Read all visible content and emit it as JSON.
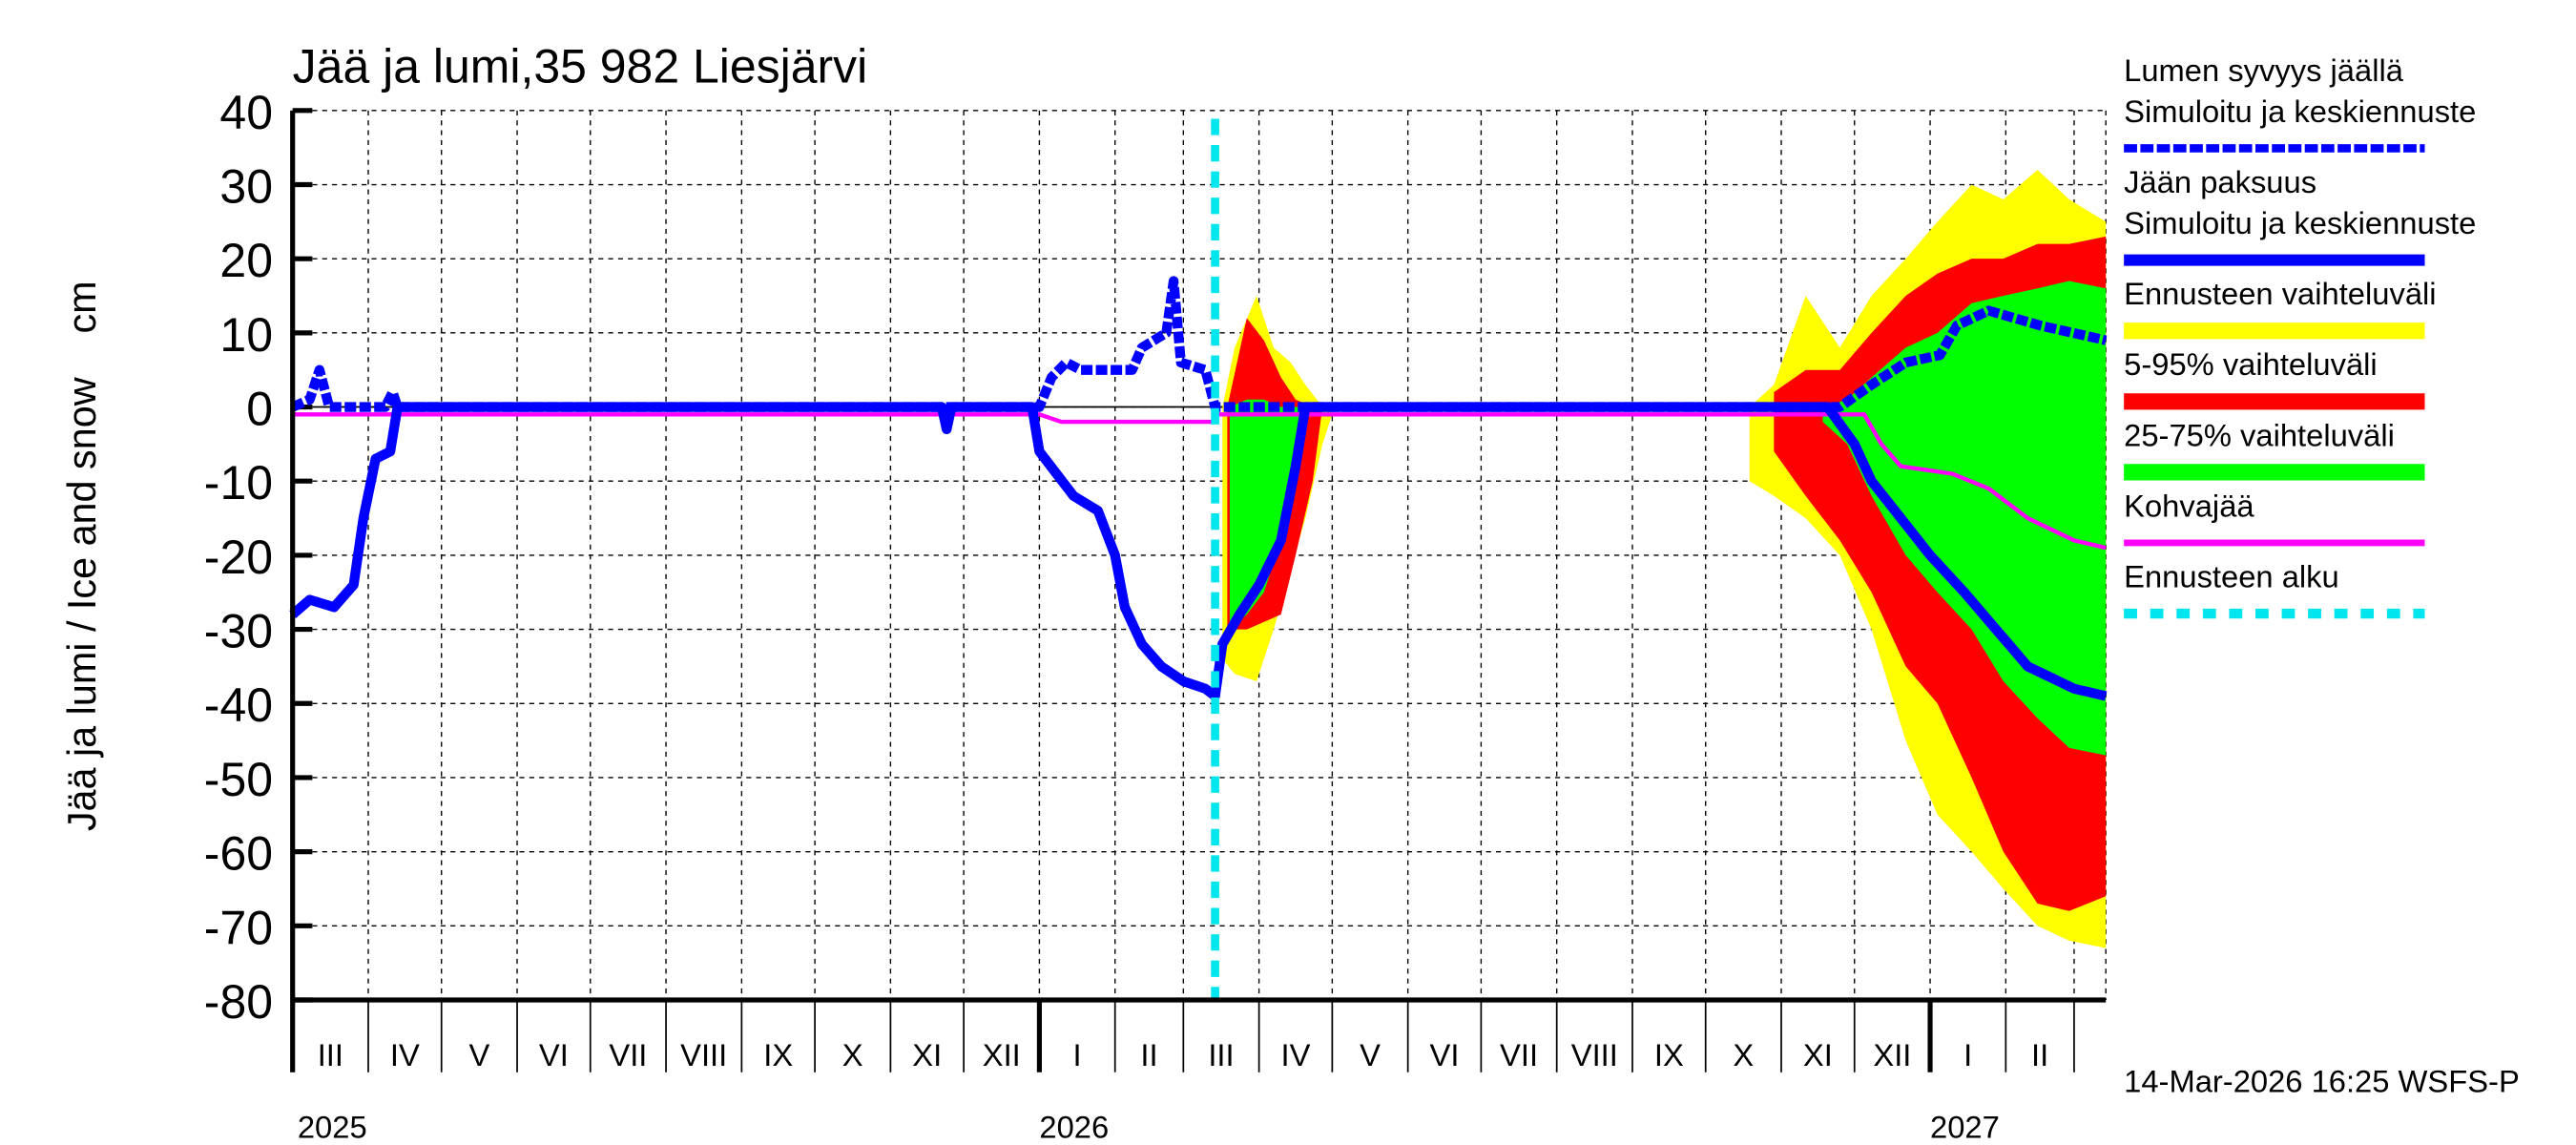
{
  "chart_data": {
    "type": "area",
    "title": "Jää ja lumi,35 982 Liesjärvi",
    "ylabel": "Jää ja lumi / Ice and snow    cm",
    "ylim": [
      -80,
      40
    ],
    "yticks": [
      40,
      30,
      20,
      10,
      0,
      -10,
      -20,
      -30,
      -40,
      -50,
      -60,
      -70,
      -80
    ],
    "xlim": [
      "2025-03-01",
      "2027-03-14"
    ],
    "grid": true,
    "legend_position": "right",
    "month_labels": [
      {
        "label": "III",
        "start": "2025-03-01"
      },
      {
        "label": "IV",
        "start": "2025-04-01"
      },
      {
        "label": "V",
        "start": "2025-05-01"
      },
      {
        "label": "VI",
        "start": "2025-06-01"
      },
      {
        "label": "VII",
        "start": "2025-07-01"
      },
      {
        "label": "VIII",
        "start": "2025-08-01"
      },
      {
        "label": "IX",
        "start": "2025-09-01"
      },
      {
        "label": "X",
        "start": "2025-10-01"
      },
      {
        "label": "XI",
        "start": "2025-11-01"
      },
      {
        "label": "XII",
        "start": "2025-12-01"
      },
      {
        "label": "I",
        "start": "2026-01-01"
      },
      {
        "label": "II",
        "start": "2026-02-01"
      },
      {
        "label": "III",
        "start": "2026-03-01"
      },
      {
        "label": "IV",
        "start": "2026-04-01"
      },
      {
        "label": "V",
        "start": "2026-05-01"
      },
      {
        "label": "VI",
        "start": "2026-06-01"
      },
      {
        "label": "VII",
        "start": "2026-07-01"
      },
      {
        "label": "VIII",
        "start": "2026-08-01"
      },
      {
        "label": "IX",
        "start": "2026-09-01"
      },
      {
        "label": "X",
        "start": "2026-10-01"
      },
      {
        "label": "XI",
        "start": "2026-11-01"
      },
      {
        "label": "XII",
        "start": "2026-12-01"
      },
      {
        "label": "I",
        "start": "2027-01-01"
      },
      {
        "label": "II",
        "start": "2027-02-01"
      },
      {
        "label": "",
        "start": "2027-03-01"
      }
    ],
    "year_labels": [
      {
        "label": "2025",
        "date": "2025-03-01"
      },
      {
        "label": "2026",
        "date": "2026-01-01"
      },
      {
        "label": "2027",
        "date": "2027-01-01"
      }
    ],
    "forecast_start": "2026-03-14",
    "bands": [
      {
        "name": "Ennusteen vaihteluväli",
        "color": "#ffff00",
        "segments": [
          [
            [
              "2026-03-17",
              -34,
              0
            ],
            [
              "2026-03-22",
              -36,
              8
            ],
            [
              "2026-03-31",
              -37,
              15
            ],
            [
              "2026-04-07",
              -30,
              8
            ],
            [
              "2026-04-14",
              -22,
              6
            ],
            [
              "2026-04-20",
              -15,
              3
            ],
            [
              "2026-04-27",
              -5,
              0
            ],
            [
              "2026-05-02",
              0,
              0
            ]
          ],
          [
            [
              "2026-10-19",
              -10,
              0
            ],
            [
              "2026-10-29",
              -12,
              3
            ],
            [
              "2026-11-11",
              -15,
              15
            ],
            [
              "2026-11-25",
              -20,
              8
            ],
            [
              "2026-12-08",
              -30,
              15
            ],
            [
              "2026-12-22",
              -45,
              20
            ],
            [
              "2027-01-04",
              -55,
              25
            ],
            [
              "2027-01-18",
              -60,
              30
            ],
            [
              "2027-01-31",
              -65,
              28
            ],
            [
              "2027-02-14",
              -70,
              32
            ],
            [
              "2027-02-27",
              -72,
              28
            ],
            [
              "2027-03-14",
              -73,
              25
            ]
          ]
        ]
      },
      {
        "name": "5-95% vaihteluväli",
        "color": "#ff0000",
        "segments": [
          [
            [
              "2026-03-19",
              -30,
              0
            ],
            [
              "2026-03-27",
              -30,
              12
            ],
            [
              "2026-04-03",
              -29,
              9
            ],
            [
              "2026-04-10",
              -28,
              4
            ],
            [
              "2026-04-16",
              -20,
              1
            ],
            [
              "2026-04-23",
              -10,
              0
            ],
            [
              "2026-04-27",
              0,
              0
            ]
          ],
          [
            [
              "2026-10-29",
              -6,
              2
            ],
            [
              "2026-11-11",
              -12,
              5
            ],
            [
              "2026-11-25",
              -18,
              5
            ],
            [
              "2026-12-08",
              -25,
              10
            ],
            [
              "2026-12-22",
              -35,
              15
            ],
            [
              "2027-01-04",
              -40,
              18
            ],
            [
              "2027-01-18",
              -50,
              20
            ],
            [
              "2027-01-31",
              -60,
              20
            ],
            [
              "2027-02-14",
              -67,
              22
            ],
            [
              "2027-02-27",
              -68,
              22
            ],
            [
              "2027-03-14",
              -66,
              23
            ]
          ]
        ]
      },
      {
        "name": "25-75% vaihteluväli",
        "color": "#00ff00",
        "segments": [
          [
            [
              "2026-03-20",
              -30,
              0
            ],
            [
              "2026-03-27",
              -28,
              1
            ],
            [
              "2026-04-03",
              -25,
              1
            ],
            [
              "2026-04-10",
              -18,
              0
            ],
            [
              "2026-04-16",
              -6,
              0
            ],
            [
              "2026-04-21",
              0,
              0
            ]
          ],
          [
            [
              "2026-11-18",
              -2,
              0
            ],
            [
              "2026-11-28",
              -5,
              1
            ],
            [
              "2026-12-08",
              -12,
              4
            ],
            [
              "2026-12-22",
              -20,
              8
            ],
            [
              "2027-01-04",
              -25,
              10
            ],
            [
              "2027-01-18",
              -30,
              14
            ],
            [
              "2027-01-31",
              -37,
              15
            ],
            [
              "2027-02-14",
              -42,
              16
            ],
            [
              "2027-02-27",
              -46,
              17
            ],
            [
              "2027-03-14",
              -47,
              16
            ]
          ]
        ]
      }
    ],
    "series": [
      {
        "name": "Kohvajää",
        "color": "#ff00ff",
        "style": "solid",
        "points": [
          [
            "2025-03-01",
            -1
          ],
          [
            "2026-01-01",
            -1
          ],
          [
            "2026-01-10",
            -2
          ],
          [
            "2026-03-13",
            -2
          ],
          [
            "2026-03-14",
            -1
          ],
          [
            "2026-12-05",
            -1
          ],
          [
            "2026-12-12",
            -5
          ],
          [
            "2026-12-20",
            -8
          ],
          [
            "2027-01-10",
            -9
          ],
          [
            "2027-01-25",
            -11
          ],
          [
            "2027-02-10",
            -15
          ],
          [
            "2027-03-01",
            -18
          ],
          [
            "2027-03-14",
            -19
          ]
        ]
      },
      {
        "name": "Jään paksuus – Simuloitu ja keskiennuste",
        "color": "#0000ff",
        "style": "solid",
        "points": [
          [
            "2025-03-01",
            -28
          ],
          [
            "2025-03-08",
            -26
          ],
          [
            "2025-03-18",
            -27
          ],
          [
            "2025-03-26",
            -24
          ],
          [
            "2025-03-30",
            -15
          ],
          [
            "2025-04-04",
            -7
          ],
          [
            "2025-04-10",
            -6
          ],
          [
            "2025-04-13",
            0
          ],
          [
            "2025-11-22",
            0
          ],
          [
            "2025-11-24",
            -3
          ],
          [
            "2025-11-26",
            0
          ],
          [
            "2025-12-29",
            0
          ],
          [
            "2026-01-01",
            -6
          ],
          [
            "2026-01-08",
            -9
          ],
          [
            "2026-01-15",
            -12
          ],
          [
            "2026-01-25",
            -14
          ],
          [
            "2026-02-01",
            -20
          ],
          [
            "2026-02-05",
            -27
          ],
          [
            "2026-02-12",
            -32
          ],
          [
            "2026-02-20",
            -35
          ],
          [
            "2026-03-01",
            -37
          ],
          [
            "2026-03-10",
            -38
          ],
          [
            "2026-03-14",
            -39
          ],
          [
            "2026-03-17",
            -32
          ],
          [
            "2026-03-24",
            -28
          ],
          [
            "2026-04-01",
            -24
          ],
          [
            "2026-04-10",
            -18
          ],
          [
            "2026-04-16",
            -8
          ],
          [
            "2026-04-20",
            0
          ],
          [
            "2026-11-20",
            0
          ],
          [
            "2026-12-01",
            -5
          ],
          [
            "2026-12-08",
            -10
          ],
          [
            "2026-12-20",
            -15
          ],
          [
            "2027-01-01",
            -20
          ],
          [
            "2027-01-15",
            -25
          ],
          [
            "2027-01-28",
            -30
          ],
          [
            "2027-02-10",
            -35
          ],
          [
            "2027-03-01",
            -38
          ],
          [
            "2027-03-14",
            -39
          ]
        ]
      },
      {
        "name": "Lumen syvyys jäällä – Simuloitu ja keskiennuste",
        "color": "#0000ff",
        "style": "dashed",
        "points": [
          [
            "2025-03-01",
            0
          ],
          [
            "2025-03-08",
            1
          ],
          [
            "2025-03-12",
            5
          ],
          [
            "2025-03-16",
            0
          ],
          [
            "2025-04-08",
            0
          ],
          [
            "2025-04-11",
            2
          ],
          [
            "2025-04-13",
            0
          ],
          [
            "2026-01-01",
            0
          ],
          [
            "2026-01-06",
            4
          ],
          [
            "2026-01-12",
            6
          ],
          [
            "2026-01-18",
            5
          ],
          [
            "2026-02-08",
            5
          ],
          [
            "2026-02-12",
            8
          ],
          [
            "2026-02-22",
            10
          ],
          [
            "2026-02-25",
            17
          ],
          [
            "2026-02-28",
            6
          ],
          [
            "2026-03-10",
            5
          ],
          [
            "2026-03-14",
            0
          ],
          [
            "2026-11-25",
            0
          ],
          [
            "2026-12-08",
            3
          ],
          [
            "2026-12-22",
            6
          ],
          [
            "2027-01-05",
            7
          ],
          [
            "2027-01-12",
            11
          ],
          [
            "2027-01-25",
            13
          ],
          [
            "2027-02-15",
            11
          ],
          [
            "2027-03-14",
            9
          ]
        ]
      }
    ],
    "legend": [
      {
        "line1": "Lumen syvyys jäällä",
        "line2": "Simuloitu ja keskiennuste",
        "color": "#0000ff",
        "style": "dashed"
      },
      {
        "line1": "Jään paksuus",
        "line2": "Simuloitu ja keskiennuste",
        "color": "#0000ff",
        "style": "solid"
      },
      {
        "line1": "Ennusteen vaihteluväli",
        "line2": "",
        "color": "#ffff00",
        "style": "band"
      },
      {
        "line1": "5-95% vaihteluväli",
        "line2": "",
        "color": "#ff0000",
        "style": "band"
      },
      {
        "line1": "25-75% vaihteluväli",
        "line2": "",
        "color": "#00ff00",
        "style": "band"
      },
      {
        "line1": "Kohvajää",
        "line2": "",
        "color": "#ff00ff",
        "style": "solid"
      },
      {
        "line1": "Ennusteen alku",
        "line2": "",
        "color": "#00e5ee",
        "style": "dotted"
      }
    ],
    "footer": "14-Mar-2026 16:25 WSFS-P"
  }
}
